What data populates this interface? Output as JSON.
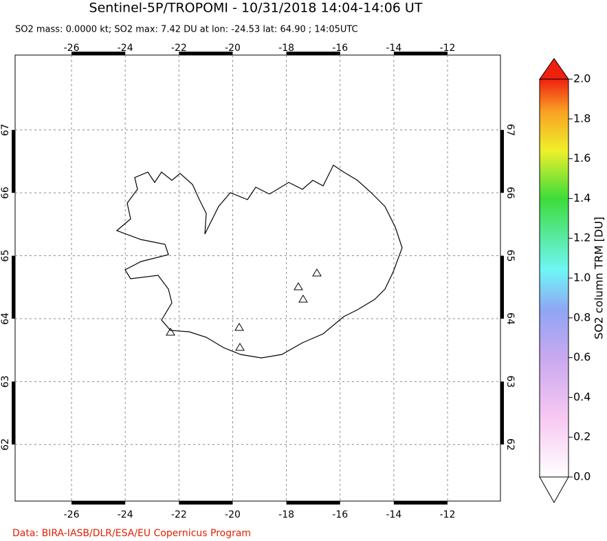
{
  "title": "Sentinel-5P/TROPOMI - 10/31/2018 14:04-14:06 UT",
  "subtitle": "SO2 mass: 0.0000 kt; SO2 max: 7.42 DU at lon: -24.53 lat: 64.90 ; 14:05UTC",
  "map": {
    "xlim": [
      -28.1,
      -10.03
    ],
    "ylim": [
      61.1,
      68.19
    ],
    "xticks": [
      -26,
      -24,
      -22,
      -20,
      -18,
      -16,
      -14,
      -12
    ],
    "yticks": [
      62,
      63,
      64,
      65,
      66,
      67
    ],
    "grid": true
  },
  "colorbar": {
    "label": "SO2 column TRM [DU]",
    "lim": [
      0,
      2
    ],
    "ticks": [
      {
        "value": 0,
        "label": "0.0"
      },
      0.2,
      0.4,
      0.6,
      0.8,
      {
        "value": 1,
        "label": "1.0"
      },
      1.2,
      1.4,
      1.6,
      1.8,
      {
        "value": 2,
        "label": "2.0"
      }
    ]
  },
  "credit": "Data: BIRA-IASB/DLR/ESA/EU Copernicus Program"
}
